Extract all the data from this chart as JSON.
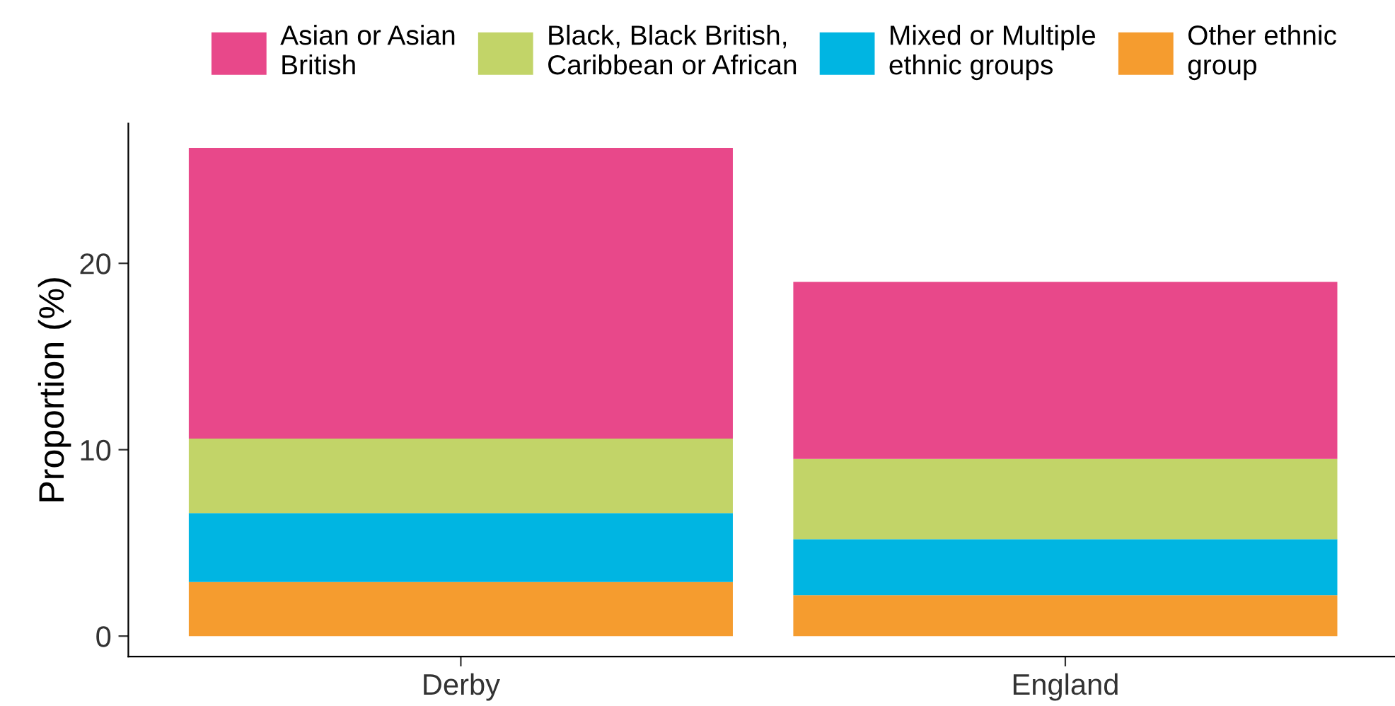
{
  "chart_data": {
    "type": "bar",
    "stacked": true,
    "ylabel": "Proportion (%)",
    "categories": [
      "Derby",
      "England"
    ],
    "series": [
      {
        "name": "Other ethnic\ngroup",
        "color": "#f59c2f",
        "values": [
          2.9,
          2.2
        ]
      },
      {
        "name": "Mixed or Multiple\nethnic groups",
        "color": "#00b5e2",
        "values": [
          3.7,
          3.0
        ]
      },
      {
        "name": "Black, Black British,\nCaribbean or African",
        "color": "#c2d468",
        "values": [
          4.0,
          4.3
        ]
      },
      {
        "name": "Asian or Asian\nBritish",
        "color": "#e8488a",
        "values": [
          15.6,
          9.5
        ]
      }
    ],
    "ylim": [
      -1.1,
      27.5
    ],
    "yticks": [
      0,
      10,
      20
    ],
    "grid": false,
    "legend": "top"
  }
}
